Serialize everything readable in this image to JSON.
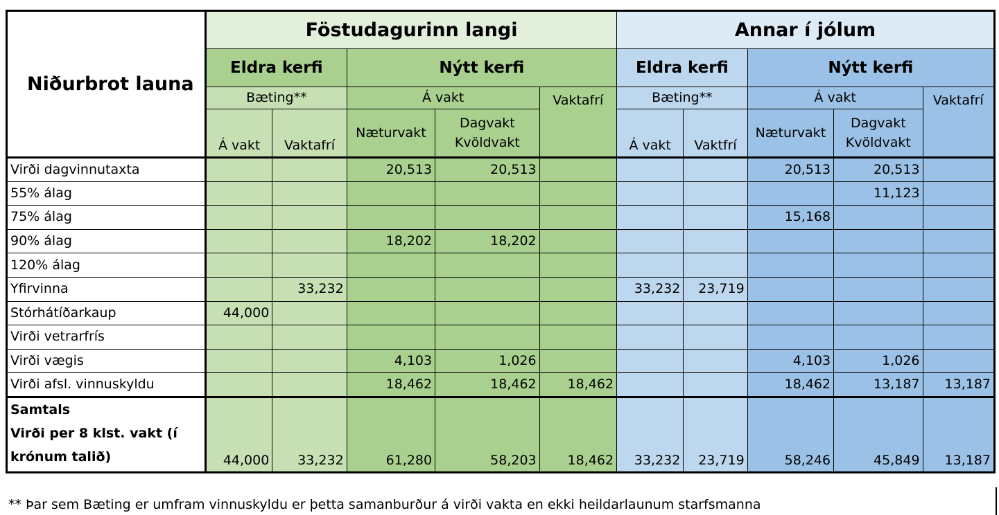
{
  "corner_title": "Niðurbrot launa",
  "groups": [
    {
      "title": "Föstudagurinn langi"
    },
    {
      "title": "Annar í jólum"
    }
  ],
  "systems": {
    "old": "Eldra kerfi",
    "new": "Nýtt kerfi"
  },
  "subheaders": {
    "baeting": "Bæting**",
    "a_vakt": "Á vakt"
  },
  "columns": {
    "g1": [
      "Á vakt",
      "Vaktafrí",
      "Næturvakt",
      "Dagvakt\nKvöldvakt",
      "Vaktafrí"
    ],
    "g2": [
      "Á vakt",
      "Vaktfrí",
      "Næturvakt",
      "Dagvakt\nKvöldvakt",
      "Vaktafrí"
    ]
  },
  "rows": [
    {
      "label": "Virði dagvinnutaxta",
      "values": [
        "",
        "",
        "20,513",
        "20,513",
        "",
        "",
        "",
        "20,513",
        "20,513",
        ""
      ]
    },
    {
      "label": "55% álag",
      "values": [
        "",
        "",
        "",
        "",
        "",
        "",
        "",
        "",
        "11,123",
        ""
      ]
    },
    {
      "label": "75% álag",
      "values": [
        "",
        "",
        "",
        "",
        "",
        "",
        "",
        "15,168",
        "",
        ""
      ]
    },
    {
      "label": "90% álag",
      "values": [
        "",
        "",
        "18,202",
        "18,202",
        "",
        "",
        "",
        "",
        "",
        ""
      ]
    },
    {
      "label": "120% álag",
      "values": [
        "",
        "",
        "",
        "",
        "",
        "",
        "",
        "",
        "",
        ""
      ]
    },
    {
      "label": "Yfirvinna",
      "values": [
        "",
        "33,232",
        "",
        "",
        "",
        "33,232",
        "23,719",
        "",
        "",
        ""
      ]
    },
    {
      "label": "Stórhátíðarkaup",
      "values": [
        "44,000",
        "",
        "",
        "",
        "",
        "",
        "",
        "",
        "",
        ""
      ]
    },
    {
      "label": "Virði vetrarfrís",
      "values": [
        "",
        "",
        "",
        "",
        "",
        "",
        "",
        "",
        "",
        ""
      ]
    },
    {
      "label": "Virði vægis",
      "values": [
        "",
        "",
        "4,103",
        "1,026",
        "",
        "",
        "",
        "4,103",
        "1,026",
        ""
      ]
    },
    {
      "label": "Virði afsl. vinnuskyldu",
      "values": [
        "",
        "",
        "18,462",
        "18,462",
        "18,462",
        "",
        "",
        "18,462",
        "13,187",
        "13,187"
      ]
    }
  ],
  "total": {
    "label_lines": [
      "Samtals",
      "Virði per 8 klst. vakt (í",
      "krónum talið)"
    ],
    "values": [
      "44,000",
      "33,232",
      "61,280",
      "58,203",
      "18,462",
      "33,232",
      "23,719",
      "58,246",
      "45,849",
      "13,187"
    ]
  },
  "footnote": "** Þar sem Bæting er umfram vinnuskyldu er þetta samanburður á virði vakta en ekki heildarlaunum starfsmanna",
  "colors": {
    "green_pale": "#e2efda",
    "green_light": "#c6e0b4",
    "green_dark": "#a9d08e",
    "blue_pale": "#ddebf7",
    "blue_light": "#bdd7ee",
    "blue_dark": "#9bc2e6"
  }
}
